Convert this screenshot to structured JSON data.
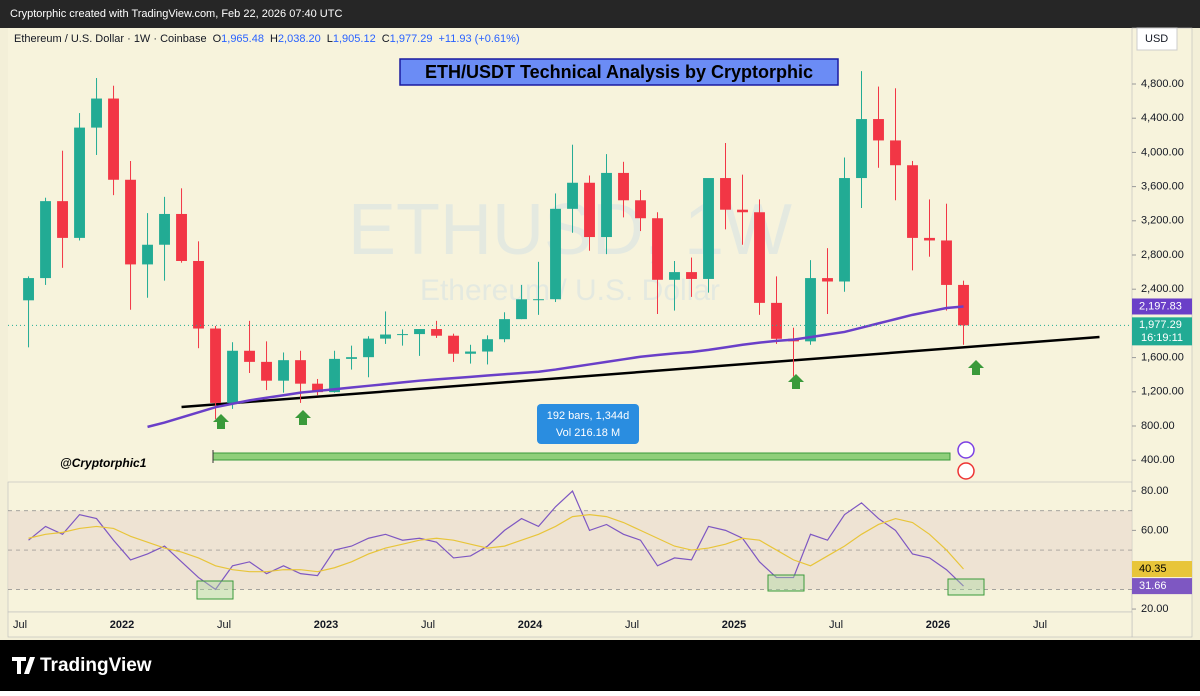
{
  "header": {
    "credit": "Cryptorphic created with TradingView.com, Feb 22, 2026 07:40 UTC",
    "symbol": "Ethereum / U.S. Dollar · 1W · Coinbase",
    "ohlc": [
      [
        "O",
        "1,965.48"
      ],
      [
        "H",
        "2,038.20"
      ],
      [
        "L",
        "1,905.12"
      ],
      [
        "C",
        "1,977.29"
      ]
    ],
    "change": "+11.93 (+0.61%)",
    "currency": "USD"
  },
  "footer": {
    "brand": "TradingView"
  },
  "chart_data": {
    "type": "candlestick",
    "title": "ETH/USDT Technical Analysis by Cryptorphic",
    "watermark": "ETHUSD, 1W",
    "watermark_sub": "Ethereum / U.S. Dollar",
    "author": "@Cryptorphic1",
    "measure": {
      "bars": "192 bars, 1,344d",
      "volume": "Vol 216.18 M"
    },
    "up_color": "#22ab94",
    "down_color": "#f23645",
    "xlim": [
      2021.441,
      2026.951
    ],
    "ylim": [
      145,
      5455
    ],
    "xticks": [
      {
        "value": 2021.5,
        "label": "Jul"
      },
      2022,
      {
        "value": 2022.5,
        "label": "Jul"
      },
      2023,
      {
        "value": 2023.5,
        "label": "Jul"
      },
      2024,
      {
        "value": 2024.5,
        "label": "Jul"
      },
      2025,
      {
        "value": 2025.5,
        "label": "Jul"
      },
      2026,
      {
        "value": 2026.5,
        "label": "Jul"
      }
    ],
    "yticks": [
      {
        "value": 4800,
        "label": "4,800.00"
      },
      {
        "value": 4400,
        "label": "4,400.00"
      },
      {
        "value": 4000,
        "label": "4,000.00"
      },
      {
        "value": 3600,
        "label": "3,600.00"
      },
      {
        "value": 3200,
        "label": "3,200.00"
      },
      {
        "value": 2800,
        "label": "2,800.00"
      },
      {
        "value": 2400,
        "label": "2,400.00"
      },
      {
        "value": 1600,
        "label": "1,600.00"
      },
      {
        "value": 1200,
        "label": "1,200.00"
      },
      {
        "value": 800,
        "label": "800.00"
      },
      {
        "value": 400,
        "label": "400.00"
      }
    ],
    "dates": [
      "2021-07",
      "2021-08",
      "2021-09",
      "2021-10",
      "2021-11",
      "2021-12",
      "2022-01",
      "2022-02",
      "2022-03",
      "2022-04",
      "2022-05",
      "2022-06",
      "2022-07",
      "2022-08",
      "2022-09",
      "2022-10",
      "2022-11",
      "2022-12",
      "2023-01",
      "2023-02",
      "2023-03",
      "2023-04",
      "2023-05",
      "2023-06",
      "2023-07",
      "2023-08",
      "2023-09",
      "2023-10",
      "2023-11",
      "2023-12",
      "2024-01",
      "2024-02",
      "2024-03",
      "2024-04",
      "2024-05",
      "2024-06",
      "2024-07",
      "2024-08",
      "2024-09",
      "2024-10",
      "2024-11",
      "2024-12",
      "2025-01",
      "2025-02",
      "2025-03",
      "2025-04",
      "2025-05",
      "2025-06",
      "2025-07",
      "2025-08",
      "2025-09",
      "2025-10",
      "2025-11",
      "2025-12",
      "2026-01",
      "2026-02"
    ],
    "ohlc": [
      [
        2270,
        2550,
        1720,
        2530
      ],
      [
        2530,
        3470,
        2450,
        3430
      ],
      [
        3430,
        4020,
        2650,
        3000
      ],
      [
        3000,
        4460,
        2970,
        4290
      ],
      [
        4290,
        4870,
        3970,
        4630
      ],
      [
        4630,
        4780,
        3500,
        3680
      ],
      [
        3680,
        3900,
        2160,
        2690
      ],
      [
        2690,
        3290,
        2300,
        2920
      ],
      [
        2920,
        3480,
        2500,
        3280
      ],
      [
        3280,
        3580,
        2710,
        2730
      ],
      [
        2730,
        2960,
        1710,
        1940
      ],
      [
        1940,
        1970,
        880,
        1070
      ],
      [
        1070,
        1780,
        1000,
        1680
      ],
      [
        1680,
        2030,
        1420,
        1550
      ],
      [
        1550,
        1790,
        1220,
        1330
      ],
      [
        1330,
        1660,
        1190,
        1570
      ],
      [
        1570,
        1680,
        1070,
        1295
      ],
      [
        1295,
        1350,
        1160,
        1196
      ],
      [
        1196,
        1680,
        1190,
        1585
      ],
      [
        1585,
        1740,
        1460,
        1605
      ],
      [
        1605,
        1850,
        1370,
        1822
      ],
      [
        1822,
        2140,
        1760,
        1870
      ],
      [
        1870,
        1930,
        1740,
        1875
      ],
      [
        1875,
        1930,
        1620,
        1934
      ],
      [
        1934,
        2030,
        1830,
        1856
      ],
      [
        1856,
        1880,
        1550,
        1645
      ],
      [
        1645,
        1750,
        1530,
        1671
      ],
      [
        1671,
        1860,
        1520,
        1815
      ],
      [
        1815,
        2130,
        1780,
        2050
      ],
      [
        2050,
        2450,
        2050,
        2282
      ],
      [
        2282,
        2720,
        2100,
        2283
      ],
      [
        2283,
        3520,
        2250,
        3340
      ],
      [
        3340,
        4090,
        3060,
        3645
      ],
      [
        3645,
        3730,
        2850,
        3010
      ],
      [
        3010,
        3980,
        2810,
        3760
      ],
      [
        3760,
        3890,
        3240,
        3440
      ],
      [
        3440,
        3560,
        3080,
        3230
      ],
      [
        3230,
        3300,
        2110,
        2510
      ],
      [
        2510,
        2730,
        2150,
        2600
      ],
      [
        2600,
        2770,
        2310,
        2520
      ],
      [
        2520,
        3680,
        2360,
        3700
      ],
      [
        3700,
        4110,
        3100,
        3330
      ],
      [
        3330,
        3740,
        2920,
        3300
      ],
      [
        3300,
        3450,
        2100,
        2240
      ],
      [
        2240,
        2550,
        1760,
        1820
      ],
      [
        1820,
        1950,
        1380,
        1790
      ],
      [
        1790,
        2740,
        1750,
        2530
      ],
      [
        2530,
        2880,
        2110,
        2490
      ],
      [
        2490,
        3940,
        2370,
        3700
      ],
      [
        3700,
        4950,
        3350,
        4390
      ],
      [
        4390,
        4770,
        3820,
        4140
      ],
      [
        4140,
        4750,
        3440,
        3850
      ],
      [
        3850,
        3900,
        2620,
        3000
      ],
      [
        3000,
        3450,
        2780,
        2970
      ],
      [
        2970,
        3400,
        2150,
        2450
      ],
      [
        2450,
        2500,
        1750,
        1977.29
      ]
    ],
    "ma": {
      "color": "#6a3fc8",
      "label": "2,197.83",
      "values": [
        null,
        null,
        null,
        null,
        null,
        null,
        null,
        790,
        840,
        900,
        960,
        1020,
        1060,
        1100,
        1130,
        1160,
        1190,
        1210,
        1230,
        1250,
        1270,
        1290,
        1310,
        1330,
        1345,
        1360,
        1375,
        1390,
        1405,
        1420,
        1435,
        1460,
        1490,
        1520,
        1550,
        1580,
        1610,
        1630,
        1650,
        1665,
        1690,
        1720,
        1750,
        1775,
        1795,
        1810,
        1840,
        1870,
        1900,
        1950,
        2000,
        2050,
        2100,
        2140,
        2180,
        2197.83
      ]
    },
    "close_label": "1,977.29",
    "countdown": "16:19:11",
    "trendline": {
      "dates": [
        "2022-04",
        "2026-10"
      ],
      "values": [
        1022,
        1841
      ]
    },
    "rsi": {
      "ylim": [
        18.5,
        84.6
      ],
      "yticks": [
        {
          "value": 80,
          "label": "80.00"
        },
        {
          "value": 60,
          "label": "60.00"
        },
        {
          "value": 20,
          "label": "20.00"
        }
      ],
      "bands": [
        70,
        50,
        30
      ],
      "series": [
        {
          "name": "RSI",
          "color": "#7e57c2",
          "label": "31.66",
          "values": [
            55,
            62,
            58,
            68,
            66,
            55,
            45,
            48,
            52,
            44,
            36,
            30,
            42,
            44,
            38,
            42,
            38,
            37,
            50,
            52,
            56,
            58,
            55,
            56,
            54,
            46,
            47,
            52,
            60,
            66,
            62,
            72,
            80,
            60,
            63,
            58,
            55,
            42,
            46,
            45,
            62,
            60,
            56,
            44,
            36,
            36,
            58,
            55,
            68,
            74,
            66,
            60,
            48,
            46,
            40,
            31.66
          ]
        },
        {
          "name": "RSI MA",
          "color": "#e8c53a",
          "label": "40.35",
          "values": [
            56,
            58,
            59,
            61,
            62,
            61,
            57,
            54,
            51,
            49,
            46,
            42,
            40,
            39,
            39,
            40,
            40,
            39,
            41,
            44,
            48,
            51,
            53,
            55,
            56,
            55,
            53,
            51,
            52,
            55,
            58,
            62,
            67,
            68,
            67,
            64,
            60,
            56,
            52,
            50,
            51,
            53,
            56,
            55,
            50,
            45,
            42,
            47,
            52,
            58,
            63,
            66,
            64,
            58,
            50,
            40.35
          ]
        }
      ]
    }
  }
}
